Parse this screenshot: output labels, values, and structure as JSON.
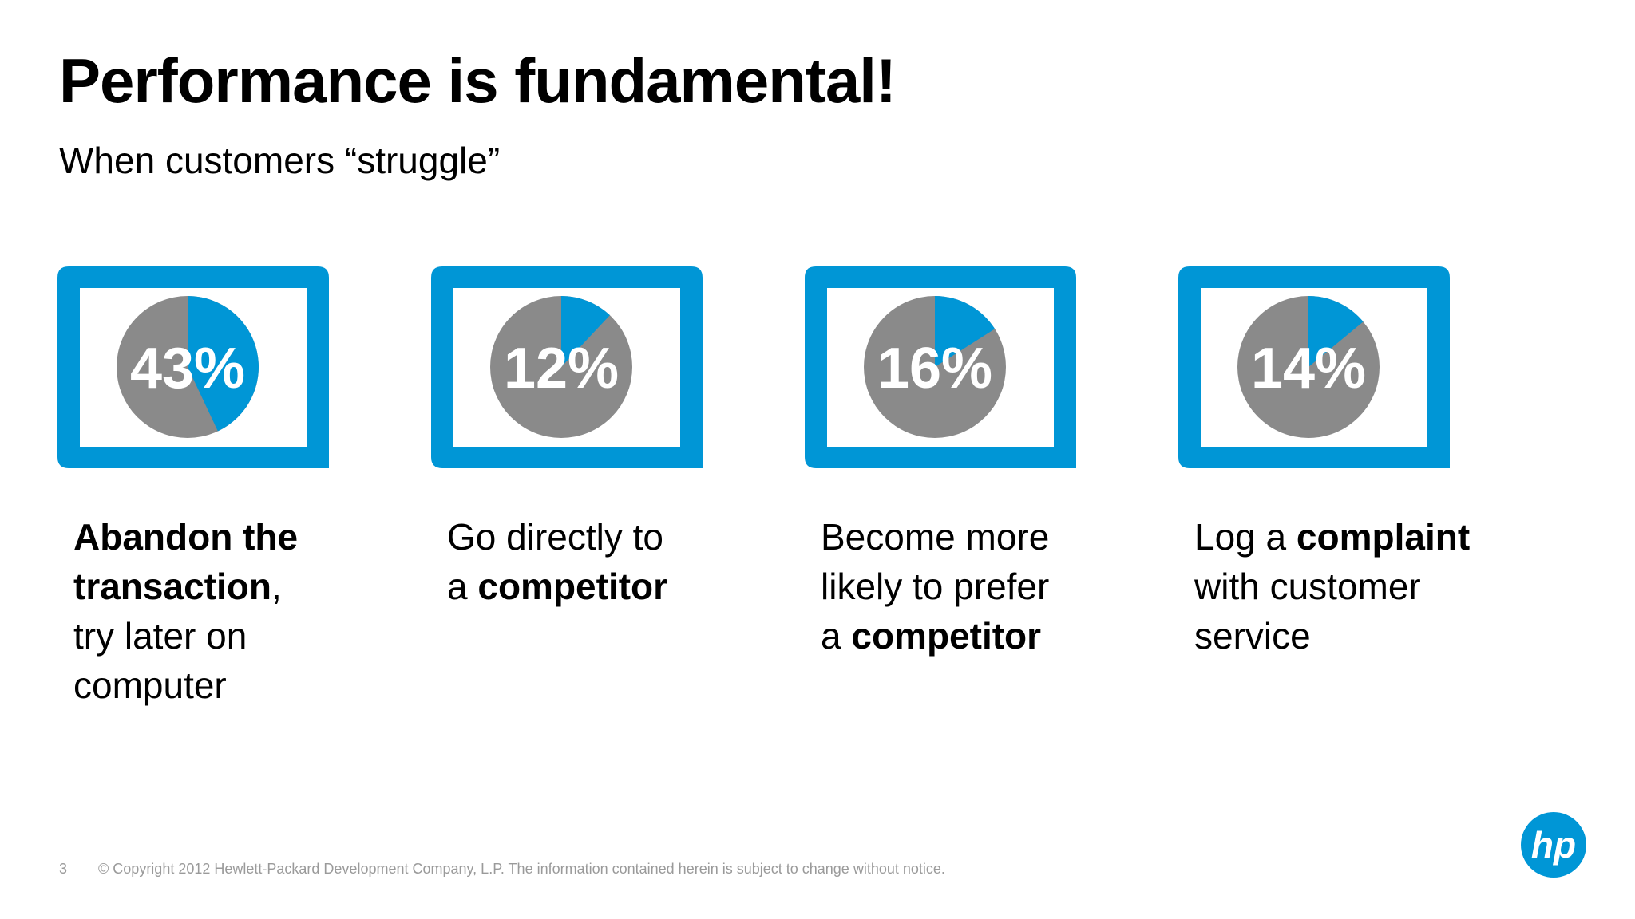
{
  "title": "Performance is fundamental!",
  "subtitle": "When customers “struggle”",
  "colors": {
    "accent": "#0096d6",
    "pie_gray": "#8a8a8a",
    "footer_text": "#9a9a9a"
  },
  "cards": [
    {
      "percent": 0.43,
      "label": "43%",
      "desc": [
        [
          {
            "t": "Abandon the",
            "b": true
          }
        ],
        [
          {
            "t": "transaction",
            "b": true
          },
          {
            "t": ",",
            "b": false
          }
        ],
        [
          {
            "t": "try later on",
            "b": false
          }
        ],
        [
          {
            "t": "computer",
            "b": false
          }
        ]
      ]
    },
    {
      "percent": 0.12,
      "label": "12%",
      "desc": [
        [
          {
            "t": "Go directly to",
            "b": false
          }
        ],
        [
          {
            "t": "a ",
            "b": false
          },
          {
            "t": "competitor",
            "b": true
          }
        ]
      ]
    },
    {
      "percent": 0.16,
      "label": "16%",
      "desc": [
        [
          {
            "t": "Become more",
            "b": false
          }
        ],
        [
          {
            "t": "likely to prefer",
            "b": false
          }
        ],
        [
          {
            "t": "a ",
            "b": false
          },
          {
            "t": "competitor",
            "b": true
          }
        ]
      ]
    },
    {
      "percent": 0.14,
      "label": "14%",
      "desc": [
        [
          {
            "t": "Log a ",
            "b": false
          },
          {
            "t": "complaint",
            "b": true
          }
        ],
        [
          {
            "t": "with customer",
            "b": false
          }
        ],
        [
          {
            "t": "service",
            "b": false
          }
        ]
      ]
    }
  ],
  "footer": {
    "page_number": "3",
    "copyright": "© Copyright 2012 Hewlett-Packard Development Company, L.P.  The information contained herein is subject to change without notice."
  },
  "logo": {
    "text": "hp",
    "icon": "hp-logo-icon"
  }
}
